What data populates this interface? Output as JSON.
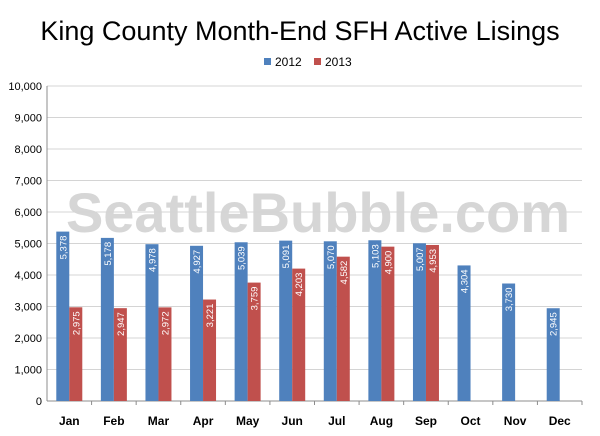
{
  "chart_data": {
    "type": "bar",
    "title": "King County Month-End SFH Active Lisings",
    "watermark": "SeattleBubble.com",
    "categories": [
      "Jan",
      "Feb",
      "Mar",
      "Apr",
      "May",
      "Jun",
      "Jul",
      "Aug",
      "Sep",
      "Oct",
      "Nov",
      "Dec"
    ],
    "series": [
      {
        "name": "2012",
        "color": "#4F81BD",
        "values": [
          5378,
          5178,
          4978,
          4927,
          5039,
          5091,
          5070,
          5103,
          5007,
          4304,
          3730,
          2945
        ],
        "labels": [
          "5,378",
          "5,178",
          "4,978",
          "4,927",
          "5,039",
          "5,091",
          "5,070",
          "5,103",
          "5,007",
          "4,304",
          "3,730",
          "2,945"
        ]
      },
      {
        "name": "2013",
        "color": "#C0504D",
        "values": [
          2975,
          2947,
          2972,
          3221,
          3759,
          4203,
          4582,
          4900,
          4953,
          null,
          null,
          null
        ],
        "labels": [
          "2,975",
          "2,947",
          "2,972",
          "3,221",
          "3,759",
          "4,203",
          "4,582",
          "4,900",
          "4,953",
          null,
          null,
          null
        ]
      }
    ],
    "ylim": [
      0,
      10000
    ],
    "yticks": [
      0,
      1000,
      2000,
      3000,
      4000,
      5000,
      6000,
      7000,
      8000,
      9000,
      10000
    ],
    "ytick_labels": [
      "0",
      "1,000",
      "2,000",
      "3,000",
      "4,000",
      "5,000",
      "6,000",
      "7,000",
      "8,000",
      "9,000",
      "10,000"
    ],
    "grid": true,
    "legend_position": "top-center"
  }
}
